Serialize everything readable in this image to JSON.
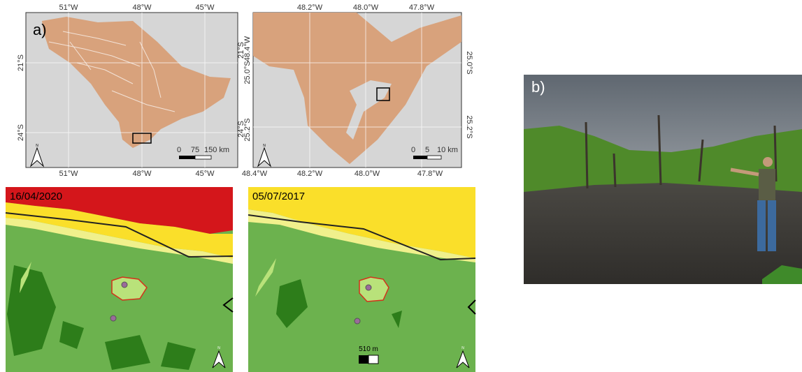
{
  "panel_a": {
    "label": "a)",
    "state_map": {
      "top_lon": [
        "51°W",
        "48°W",
        "45°W"
      ],
      "bottom_lon": [
        "51°W",
        "48°W",
        "45°W"
      ],
      "lat": [
        "21°S",
        "24°S"
      ],
      "scale": [
        "0",
        "75",
        "150 km"
      ]
    },
    "inset_map": {
      "top_lon": [
        "48.2°W",
        "48.0°W",
        "47.8°W"
      ],
      "left_lat": [
        "21°S",
        "24°S"
      ],
      "left_lon": "48.4°W",
      "left_lat_inner": [
        "25.0°S",
        "25.2°S"
      ],
      "right_lat": [
        "25.0°S",
        "25.2°S"
      ],
      "bottom_lon": [
        "48.4°W",
        "48.2°W",
        "48.0°W",
        "47.8°W"
      ],
      "scale": [
        "0",
        "5",
        "10 km"
      ]
    },
    "land_cover_2020": {
      "date": "16/04/2020"
    },
    "land_cover_2017": {
      "date": "05/07/2017",
      "scale": "510 m"
    },
    "north_label": "N"
  },
  "panel_b": {
    "label": "b)"
  }
}
